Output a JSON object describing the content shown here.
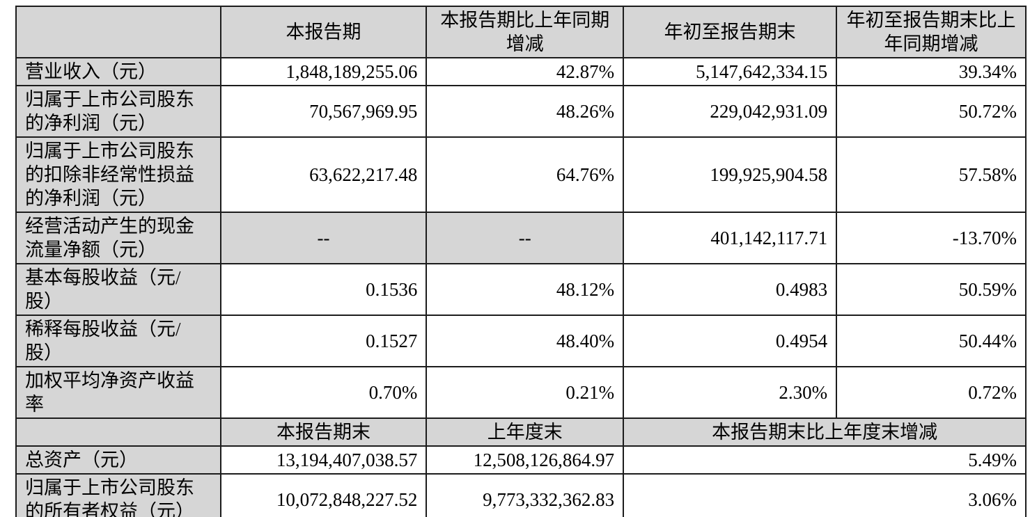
{
  "colors": {
    "header_bg": "#d6d6d6",
    "border": "#1c1c1c",
    "text": "#000000",
    "table_bg": "#ffffff"
  },
  "section1": {
    "header": [
      "",
      "本报告期",
      "本报告期比上年同期\n增减",
      "年初至报告期末",
      "年初至报告期末比上\n年同期增减"
    ],
    "rows": [
      {
        "label": "营业收入（元）",
        "values": [
          "1,848,189,255.06",
          "42.87%",
          "5,147,642,334.15",
          "39.34%"
        ]
      },
      {
        "label": "归属于上市公司股东\n的净利润（元）",
        "values": [
          "70,567,969.95",
          "48.26%",
          "229,042,931.09",
          "50.72%"
        ]
      },
      {
        "label": "归属于上市公司股东\n的扣除非经常性损益\n的净利润（元）",
        "values": [
          "63,622,217.48",
          "64.76%",
          "199,925,904.58",
          "57.58%"
        ]
      },
      {
        "label": "经营活动产生的现金\n流量净额（元）",
        "values": [
          "--",
          "--",
          "401,142,117.71",
          "-13.70%"
        ]
      },
      {
        "label": "基本每股收益（元/\n股）",
        "values": [
          "0.1536",
          "48.12%",
          "0.4983",
          "50.59%"
        ]
      },
      {
        "label": "稀释每股收益（元/\n股）",
        "values": [
          "0.1527",
          "48.40%",
          "0.4954",
          "50.44%"
        ]
      },
      {
        "label": "加权平均净资产收益\n率",
        "values": [
          "0.70%",
          "0.21%",
          "2.30%",
          "0.72%"
        ]
      }
    ]
  },
  "section2": {
    "header": [
      "",
      "本报告期末",
      "上年度末",
      "本报告期末比上年度末增减"
    ],
    "rows": [
      {
        "label": "总资产（元）",
        "values": [
          "13,194,407,038.57",
          "12,508,126,864.97",
          "5.49%"
        ]
      },
      {
        "label": "归属于上市公司股东\n的所有者权益（元）",
        "values": [
          "10,072,848,227.52",
          "9,773,332,362.83",
          "3.06%"
        ]
      }
    ]
  }
}
